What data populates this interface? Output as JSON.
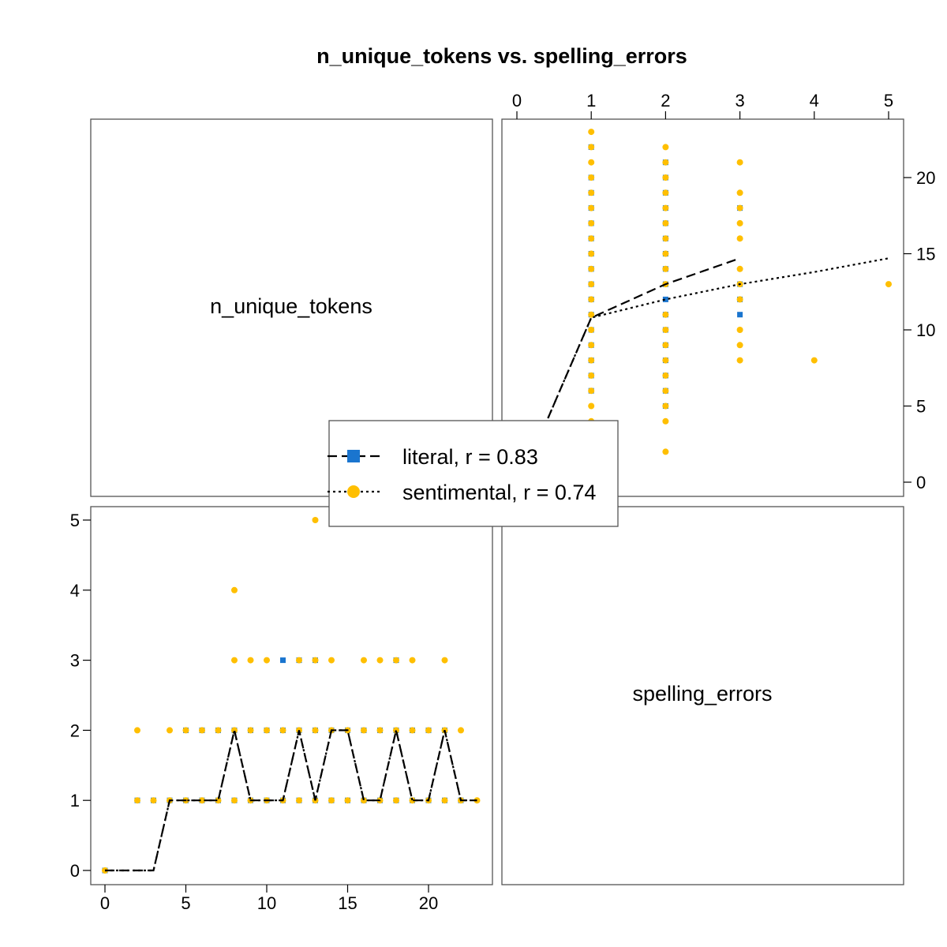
{
  "title": "n_unique_tokens vs. spelling_errors",
  "diagonal_labels": {
    "top_left": "n_unique_tokens",
    "bottom_right": "spelling_errors"
  },
  "colors": {
    "literal": "#1a75cf",
    "sentimental": "#ffbf00",
    "frame": "#555555",
    "text": "#000000"
  },
  "legend": [
    {
      "label": "literal, r = 0.83",
      "marker": "square",
      "line": "dashed"
    },
    {
      "label": "sentimental, r = 0.74",
      "marker": "circle",
      "line": "dotted"
    }
  ],
  "chart_data": [
    {
      "type": "scatter",
      "panel": "top-right",
      "x_axis_position": "top",
      "y_axis_position": "right",
      "xlim": [
        0,
        5
      ],
      "ylim": [
        0,
        23
      ],
      "x_ticks": [
        0,
        1,
        2,
        3,
        4,
        5
      ],
      "y_ticks": [
        0,
        5,
        10,
        15,
        20
      ],
      "series": [
        {
          "name": "literal",
          "points": [
            [
              1,
              22
            ],
            [
              1,
              20
            ],
            [
              1,
              19
            ],
            [
              1,
              18
            ],
            [
              1,
              17
            ],
            [
              1,
              16
            ],
            [
              1,
              15
            ],
            [
              1,
              14
            ],
            [
              1,
              13
            ],
            [
              1,
              12
            ],
            [
              1,
              11
            ],
            [
              1,
              10
            ],
            [
              1,
              9
            ],
            [
              1,
              8
            ],
            [
              1,
              7
            ],
            [
              1,
              6
            ],
            [
              2,
              21
            ],
            [
              2,
              20
            ],
            [
              2,
              19
            ],
            [
              2,
              18
            ],
            [
              2,
              17
            ],
            [
              2,
              16
            ],
            [
              2,
              15
            ],
            [
              2,
              14
            ],
            [
              2,
              13
            ],
            [
              2,
              12
            ],
            [
              2,
              11
            ],
            [
              2,
              10
            ],
            [
              2,
              9
            ],
            [
              2,
              8
            ],
            [
              2,
              7
            ],
            [
              2,
              6
            ],
            [
              2,
              5
            ],
            [
              3,
              18
            ],
            [
              3,
              13
            ],
            [
              3,
              12
            ],
            [
              3,
              11
            ]
          ],
          "trend": [
            [
              0,
              0
            ],
            [
              0.4,
              4
            ],
            [
              1,
              10.8
            ],
            [
              2,
              13
            ],
            [
              3,
              14.7
            ]
          ]
        },
        {
          "name": "sentimental",
          "points": [
            [
              1,
              23
            ],
            [
              1,
              22
            ],
            [
              1,
              21
            ],
            [
              1,
              20
            ],
            [
              1,
              19
            ],
            [
              1,
              18
            ],
            [
              1,
              17
            ],
            [
              1,
              16
            ],
            [
              1,
              15
            ],
            [
              1,
              14
            ],
            [
              1,
              13
            ],
            [
              1,
              12
            ],
            [
              1,
              11
            ],
            [
              1,
              10
            ],
            [
              1,
              9
            ],
            [
              1,
              8
            ],
            [
              1,
              7
            ],
            [
              1,
              6
            ],
            [
              1,
              5
            ],
            [
              1,
              4
            ],
            [
              2,
              22
            ],
            [
              2,
              21
            ],
            [
              2,
              20
            ],
            [
              2,
              19
            ],
            [
              2,
              18
            ],
            [
              2,
              17
            ],
            [
              2,
              16
            ],
            [
              2,
              15
            ],
            [
              2,
              14
            ],
            [
              2,
              13
            ],
            [
              2,
              11
            ],
            [
              2,
              10
            ],
            [
              2,
              9
            ],
            [
              2,
              8
            ],
            [
              2,
              7
            ],
            [
              2,
              6
            ],
            [
              2,
              5
            ],
            [
              2,
              4
            ],
            [
              2,
              2
            ],
            [
              3,
              21
            ],
            [
              3,
              19
            ],
            [
              3,
              18
            ],
            [
              3,
              17
            ],
            [
              3,
              16
            ],
            [
              3,
              14
            ],
            [
              3,
              13
            ],
            [
              3,
              12
            ],
            [
              3,
              10
            ],
            [
              3,
              9
            ],
            [
              3,
              8
            ],
            [
              4,
              8
            ],
            [
              5,
              13
            ]
          ],
          "trend": [
            [
              0,
              0
            ],
            [
              0.4,
              4
            ],
            [
              1,
              10.8
            ],
            [
              2,
              12
            ],
            [
              3,
              13
            ],
            [
              4,
              13.8
            ],
            [
              5,
              14.7
            ]
          ]
        }
      ]
    },
    {
      "type": "scatter",
      "panel": "bottom-left",
      "x_axis_position": "bottom",
      "y_axis_position": "left",
      "xlim": [
        0,
        23
      ],
      "ylim": [
        0,
        5
      ],
      "x_ticks": [
        0,
        5,
        10,
        15,
        20
      ],
      "y_ticks": [
        0,
        1,
        2,
        3,
        4,
        5
      ],
      "series": [
        {
          "name": "literal",
          "points": [
            [
              0,
              0
            ],
            [
              2,
              1
            ],
            [
              3,
              1
            ],
            [
              4,
              1
            ],
            [
              5,
              1
            ],
            [
              6,
              1
            ],
            [
              7,
              1
            ],
            [
              8,
              1
            ],
            [
              9,
              1
            ],
            [
              10,
              1
            ],
            [
              11,
              1
            ],
            [
              12,
              1
            ],
            [
              13,
              1
            ],
            [
              14,
              1
            ],
            [
              15,
              1
            ],
            [
              16,
              1
            ],
            [
              17,
              1
            ],
            [
              18,
              1
            ],
            [
              19,
              1
            ],
            [
              20,
              1
            ],
            [
              21,
              1
            ],
            [
              22,
              1
            ],
            [
              5,
              2
            ],
            [
              6,
              2
            ],
            [
              7,
              2
            ],
            [
              8,
              2
            ],
            [
              9,
              2
            ],
            [
              10,
              2
            ],
            [
              11,
              2
            ],
            [
              12,
              2
            ],
            [
              13,
              2
            ],
            [
              14,
              2
            ],
            [
              15,
              2
            ],
            [
              16,
              2
            ],
            [
              17,
              2
            ],
            [
              18,
              2
            ],
            [
              19,
              2
            ],
            [
              20,
              2
            ],
            [
              21,
              2
            ],
            [
              11,
              3
            ],
            [
              12,
              3
            ],
            [
              13,
              3
            ],
            [
              18,
              3
            ]
          ],
          "trend": [
            [
              0,
              0
            ],
            [
              3,
              0
            ],
            [
              4,
              1
            ],
            [
              7,
              1
            ],
            [
              8,
              2
            ],
            [
              9,
              1
            ],
            [
              11,
              1
            ],
            [
              12,
              2
            ],
            [
              13,
              1
            ],
            [
              14,
              2
            ],
            [
              15,
              2
            ],
            [
              16,
              1
            ],
            [
              17,
              1
            ],
            [
              18,
              2
            ],
            [
              19,
              1
            ],
            [
              20,
              1
            ],
            [
              21,
              2
            ],
            [
              22,
              1
            ],
            [
              23,
              1
            ]
          ]
        },
        {
          "name": "sentimental",
          "points": [
            [
              0,
              0
            ],
            [
              2,
              1
            ],
            [
              3,
              1
            ],
            [
              4,
              1
            ],
            [
              5,
              1
            ],
            [
              6,
              1
            ],
            [
              7,
              1
            ],
            [
              8,
              1
            ],
            [
              9,
              1
            ],
            [
              10,
              1
            ],
            [
              11,
              1
            ],
            [
              12,
              1
            ],
            [
              13,
              1
            ],
            [
              14,
              1
            ],
            [
              15,
              1
            ],
            [
              16,
              1
            ],
            [
              17,
              1
            ],
            [
              18,
              1
            ],
            [
              19,
              1
            ],
            [
              20,
              1
            ],
            [
              21,
              1
            ],
            [
              22,
              1
            ],
            [
              23,
              1
            ],
            [
              2,
              2
            ],
            [
              4,
              2
            ],
            [
              5,
              2
            ],
            [
              6,
              2
            ],
            [
              7,
              2
            ],
            [
              8,
              2
            ],
            [
              9,
              2
            ],
            [
              10,
              2
            ],
            [
              11,
              2
            ],
            [
              12,
              2
            ],
            [
              13,
              2
            ],
            [
              14,
              2
            ],
            [
              15,
              2
            ],
            [
              16,
              2
            ],
            [
              17,
              2
            ],
            [
              18,
              2
            ],
            [
              19,
              2
            ],
            [
              20,
              2
            ],
            [
              21,
              2
            ],
            [
              22,
              2
            ],
            [
              8,
              3
            ],
            [
              9,
              3
            ],
            [
              10,
              3
            ],
            [
              12,
              3
            ],
            [
              13,
              3
            ],
            [
              14,
              3
            ],
            [
              16,
              3
            ],
            [
              17,
              3
            ],
            [
              18,
              3
            ],
            [
              19,
              3
            ],
            [
              21,
              3
            ],
            [
              8,
              4
            ],
            [
              13,
              5
            ]
          ],
          "trend": [
            [
              0,
              0
            ],
            [
              3,
              0
            ],
            [
              4,
              1
            ],
            [
              7,
              1
            ],
            [
              8,
              2
            ],
            [
              9,
              1
            ],
            [
              11,
              1
            ],
            [
              12,
              2
            ],
            [
              13,
              1
            ],
            [
              14,
              2
            ],
            [
              15,
              2
            ],
            [
              16,
              1
            ],
            [
              17,
              1
            ],
            [
              18,
              2
            ],
            [
              19,
              1
            ],
            [
              20,
              1
            ],
            [
              21,
              2
            ],
            [
              22,
              1
            ],
            [
              23,
              1
            ]
          ]
        }
      ]
    }
  ]
}
